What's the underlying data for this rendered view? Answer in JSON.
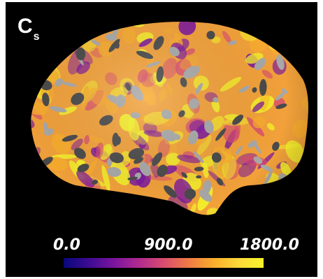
{
  "figure": {
    "label_main": "C",
    "label_sub": "s",
    "colorbar": {
      "min_label": "0.0",
      "mid_label": "900.0",
      "max_label": "1800.0",
      "colormap": "plasma",
      "colors": [
        "#0a087a",
        "#7a159f",
        "#d84c6f",
        "#f9ad2c",
        "#f5f52a"
      ]
    },
    "surface": {
      "type": "inflated cortical surface, lateral view",
      "background": "#000000",
      "mask_colors": [
        "#a8a8a8",
        "#4a4a4a"
      ]
    }
  }
}
